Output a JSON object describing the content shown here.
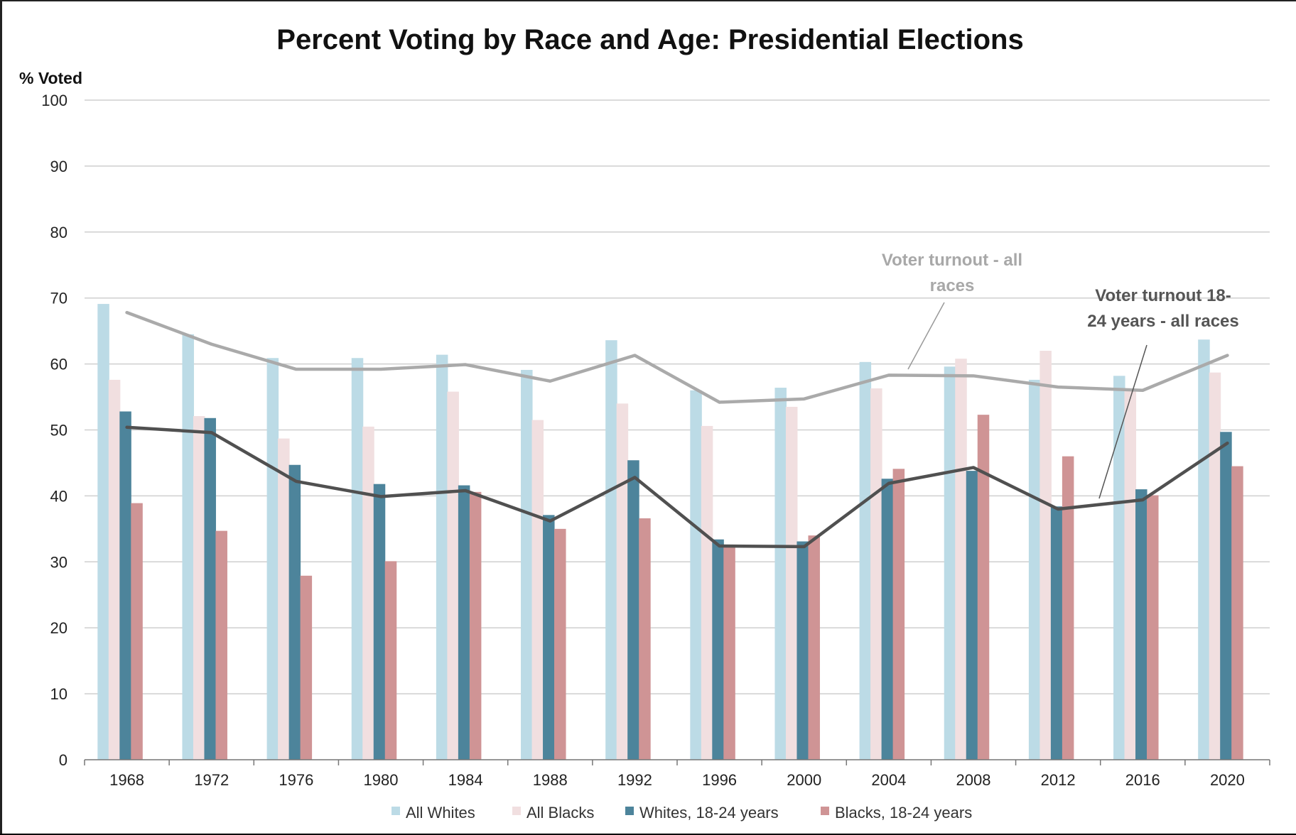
{
  "chart_data": {
    "type": "bar",
    "title": "Percent Voting by Race and Age:  Presidential Elections",
    "ylabel": "% Voted",
    "xlabel": "",
    "ylim": [
      0,
      100
    ],
    "yticks": [
      0,
      10,
      20,
      30,
      40,
      50,
      60,
      70,
      80,
      90,
      100
    ],
    "grid": true,
    "legend_position": "bottom",
    "categories": [
      "1968",
      "1972",
      "1976",
      "1980",
      "1984",
      "1988",
      "1992",
      "1996",
      "2000",
      "2004",
      "2008",
      "2012",
      "2016",
      "2020"
    ],
    "series": [
      {
        "name": "All Whites",
        "color": "#bcdbe6",
        "values": [
          69.1,
          64.5,
          60.9,
          60.9,
          61.4,
          59.1,
          63.6,
          56.0,
          56.4,
          60.3,
          59.6,
          57.6,
          58.2,
          63.7
        ]
      },
      {
        "name": "All Blacks",
        "color": "#f1dfe0",
        "values": [
          57.6,
          52.1,
          48.7,
          50.5,
          55.8,
          51.5,
          54.0,
          50.6,
          53.5,
          56.3,
          60.8,
          62.0,
          55.9,
          58.7
        ]
      },
      {
        "name": "Whites, 18-24 years",
        "color": "#4d849b",
        "values": [
          52.8,
          51.8,
          44.7,
          41.8,
          41.6,
          37.1,
          45.4,
          33.4,
          33.1,
          42.6,
          43.8,
          38.4,
          41.0,
          49.7
        ]
      },
      {
        "name": "Blacks, 18-24 years",
        "color": "#cf9495",
        "values": [
          38.9,
          34.7,
          27.9,
          30.1,
          40.6,
          35.0,
          36.6,
          32.4,
          34.0,
          44.1,
          52.3,
          46.0,
          40.1,
          44.5
        ]
      }
    ],
    "lines": [
      {
        "name": "Voter turnout - all races",
        "color": "#aaaaaa",
        "values": [
          67.8,
          63.0,
          59.2,
          59.2,
          59.9,
          57.4,
          61.3,
          54.2,
          54.7,
          58.3,
          58.2,
          56.5,
          56.0,
          61.3
        ]
      },
      {
        "name": "Voter turnout 18-24 years - all races",
        "color": "#505050",
        "values": [
          50.4,
          49.6,
          42.2,
          39.9,
          40.8,
          36.2,
          42.8,
          32.4,
          32.3,
          41.9,
          44.3,
          38.0,
          39.4,
          48.0
        ]
      }
    ],
    "annotations": [
      {
        "lines": [
          "Voter turnout - all",
          "races"
        ],
        "target": "Voter turnout - all races"
      },
      {
        "lines": [
          "Voter turnout 18-",
          "24 years - all races"
        ],
        "target": "Voter turnout 18-24 years - all races"
      }
    ]
  }
}
